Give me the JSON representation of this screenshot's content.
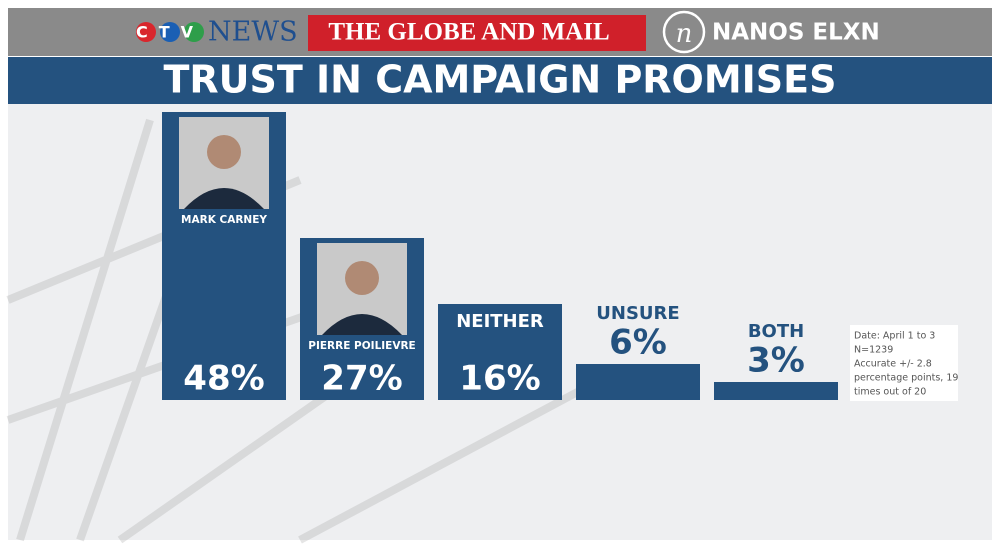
{
  "header": {
    "logos": [
      "CTV",
      "NEWS",
      "THE GLOBE AND MAIL",
      "NANOS ELXN"
    ]
  },
  "chart_data": {
    "type": "bar",
    "title": "TRUST IN CAMPAIGN PROMISES",
    "categories": [
      "MARK CARNEY",
      "PIERRE POILIEVRE",
      "NEITHER",
      "UNSURE",
      "BOTH"
    ],
    "values": [
      48,
      27,
      16,
      6,
      3
    ],
    "value_labels": [
      "48%",
      "27%",
      "16%",
      "6%",
      "3%"
    ],
    "color": "#24527f",
    "note": [
      "Date: April 1 to 3",
      "N=1239",
      "Accurate +/- 2.8",
      "percentage points, 19",
      "times out of 20"
    ]
  }
}
